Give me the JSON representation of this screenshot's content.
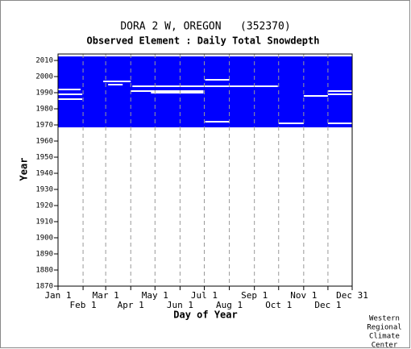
{
  "chart_data": {
    "type": "availability",
    "title": "DORA 2 W, OREGON   (352370)",
    "subtitle": "Observed Element : Daily Total Snowdepth",
    "x_label": "Day of Year",
    "y_label": "Year",
    "credit": [
      "Western",
      "Regional",
      "Climate",
      "Center"
    ],
    "color": "#0000ff",
    "gap_color": "#ffffff",
    "grid": true,
    "xlim": [
      1,
      365
    ],
    "ylim": [
      1870,
      2014
    ],
    "xticks": [
      {
        "value": 1,
        "label": "Jan 1"
      },
      {
        "value": 32,
        "label": "Feb 1"
      },
      {
        "value": 60,
        "label": "Mar 1"
      },
      {
        "value": 91,
        "label": "Apr 1"
      },
      {
        "value": 121,
        "label": "May 1"
      },
      {
        "value": 152,
        "label": "Jun 1"
      },
      {
        "value": 182,
        "label": "Jul 1"
      },
      {
        "value": 213,
        "label": "Aug 1"
      },
      {
        "value": 244,
        "label": "Sep 1"
      },
      {
        "value": 274,
        "label": "Oct 1"
      },
      {
        "value": 305,
        "label": "Nov 1"
      },
      {
        "value": 335,
        "label": "Dec 1"
      },
      {
        "value": 365,
        "label": "Dec 31"
      }
    ],
    "yticks": [
      1870,
      1880,
      1890,
      1900,
      1910,
      1920,
      1930,
      1940,
      1950,
      1960,
      1970,
      1980,
      1990,
      2000,
      2010
    ],
    "blocks": [
      {
        "days": [
          1,
          365
        ],
        "years": [
          1969,
          2012
        ]
      }
    ],
    "gaps": [
      {
        "year": 1992,
        "days": [
          1,
          29
        ]
      },
      {
        "year": 1989,
        "days": [
          1,
          31
        ]
      },
      {
        "year": 1986,
        "days": [
          1,
          31
        ]
      },
      {
        "year": 1997,
        "days": [
          57,
          91
        ]
      },
      {
        "year": 1995,
        "days": [
          63,
          81
        ]
      },
      {
        "year": 1991,
        "days": [
          91,
          181
        ]
      },
      {
        "year": 1990,
        "days": [
          116,
          181
        ]
      },
      {
        "year": 1998,
        "days": [
          183,
          213
        ]
      },
      {
        "year": 1994,
        "days": [
          93,
          273
        ]
      },
      {
        "year": 1972,
        "days": [
          183,
          213
        ]
      },
      {
        "year": 1971,
        "days": [
          274,
          305
        ]
      },
      {
        "year": 1988,
        "days": [
          305,
          335
        ]
      },
      {
        "year": 1991,
        "days": [
          335,
          365
        ]
      },
      {
        "year": 1989,
        "days": [
          335,
          365
        ]
      },
      {
        "year": 1971,
        "days": [
          335,
          365
        ]
      }
    ]
  }
}
